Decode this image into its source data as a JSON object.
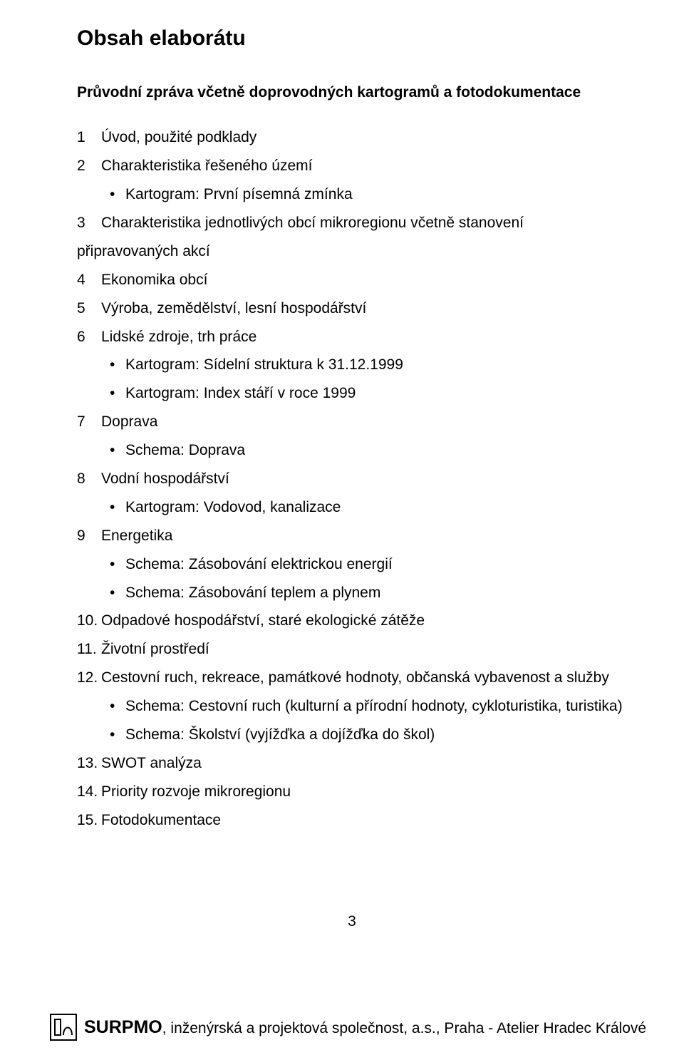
{
  "title": "Obsah elaborátu",
  "subtitle": "Průvodní zpráva včetně doprovodných kartogramů a fotodokumentace",
  "items": [
    {
      "label": "Úvod, použité podklady",
      "bullets": []
    },
    {
      "label": "Charakteristika řešeného území",
      "bullets": [
        "Kartogram: První písemná zmínka"
      ]
    },
    {
      "label": "Charakteristika jednotlivých obcí mikroregionu včetně stanovení připravovaných akcí",
      "bullets": []
    },
    {
      "label": "Ekonomika obcí",
      "bullets": []
    },
    {
      "label": "Výroba, zemědělství, lesní hospodářství",
      "bullets": []
    },
    {
      "label": "Lidské zdroje, trh práce",
      "bullets": [
        "Kartogram: Sídelní struktura k 31.12.1999",
        "Kartogram: Index stáří v roce 1999"
      ]
    },
    {
      "label": "Doprava",
      "bullets": [
        "Schema: Doprava"
      ]
    },
    {
      "label": "Vodní hospodářství",
      "bullets": [
        "Kartogram: Vodovod, kanalizace"
      ]
    },
    {
      "label": "Energetika",
      "bullets": [
        "Schema: Zásobování elektrickou energií",
        "Schema: Zásobování teplem a plynem"
      ]
    },
    {
      "label": "Odpadové hospodářství, staré ekologické zátěže",
      "bullets": []
    },
    {
      "label": "Životní prostředí",
      "bullets": []
    },
    {
      "label": "Cestovní ruch, rekreace, památkové hodnoty, občanská vybavenost a služby",
      "bullets": [
        "Schema: Cestovní ruch  (kulturní a přírodní hodnoty,  cykloturistika, turistika)",
        "Schema: Školství  (vyjížďka a dojížďka do škol)"
      ]
    },
    {
      "label": "SWOT analýza",
      "bullets": []
    },
    {
      "label": "Priority rozvoje mikroregionu",
      "bullets": []
    },
    {
      "label": "Fotodokumentace",
      "bullets": []
    }
  ],
  "page_number": "3",
  "footer": {
    "brand": "SURPMO",
    "rest": ", inženýrská a projektová společnost, a.s.,  Praha  -  Atelier Hradec Králové"
  },
  "colors": {
    "text": "#000000",
    "background": "#ffffff",
    "logo_stroke": "#000000"
  }
}
